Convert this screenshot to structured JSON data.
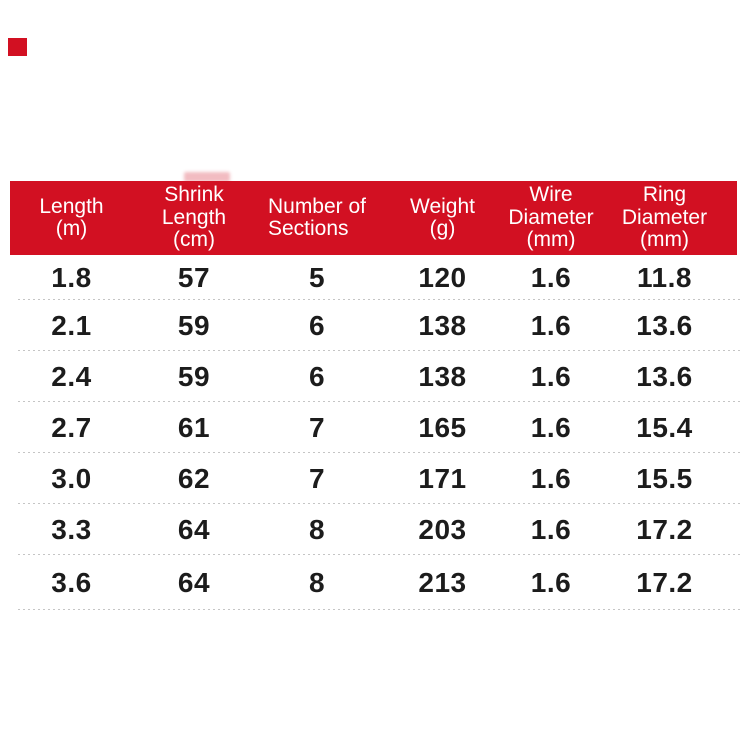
{
  "page": {
    "background": "#ffffff",
    "accent_red": "#d21022",
    "body_text_color": "#1c1c1c",
    "header_text_color": "#ffffff",
    "separator_color": "#c5c5c5"
  },
  "table": {
    "columns": [
      {
        "id": "length",
        "lines": [
          "Length",
          "(m)"
        ]
      },
      {
        "id": "shrink_length",
        "lines": [
          "Shrink",
          "Length",
          "(cm)"
        ]
      },
      {
        "id": "sections",
        "lines": [
          "Number of",
          "Sections"
        ]
      },
      {
        "id": "weight",
        "lines": [
          "Weight",
          "(g)"
        ]
      },
      {
        "id": "wire_diameter",
        "lines": [
          "Wire",
          "Diameter",
          "(mm)"
        ]
      },
      {
        "id": "ring_diameter",
        "lines": [
          "Ring",
          "Diameter",
          "(mm)"
        ]
      }
    ],
    "rows": [
      [
        "1.8",
        "57",
        "5",
        "120",
        "1.6",
        "11.8"
      ],
      [
        "2.1",
        "59",
        "6",
        "138",
        "1.6",
        "13.6"
      ],
      [
        "2.4",
        "59",
        "6",
        "138",
        "1.6",
        "13.6"
      ],
      [
        "2.7",
        "61",
        "7",
        "165",
        "1.6",
        "15.4"
      ],
      [
        "3.0",
        "62",
        "7",
        "171",
        "1.6",
        "15.5"
      ],
      [
        "3.3",
        "64",
        "8",
        "203",
        "1.6",
        "17.2"
      ],
      [
        "3.6",
        "64",
        "8",
        "213",
        "1.6",
        "17.2"
      ]
    ]
  },
  "chart_data": {
    "type": "table",
    "title": "",
    "columns": [
      "Length (m)",
      "Shrink Length (cm)",
      "Number of Sections",
      "Weight (g)",
      "Wire Diameter (mm)",
      "Ring Diameter (mm)"
    ],
    "rows": [
      [
        1.8,
        57,
        5,
        120,
        1.6,
        11.8
      ],
      [
        2.1,
        59,
        6,
        138,
        1.6,
        13.6
      ],
      [
        2.4,
        59,
        6,
        138,
        1.6,
        13.6
      ],
      [
        2.7,
        61,
        7,
        165,
        1.6,
        15.4
      ],
      [
        3.0,
        62,
        7,
        171,
        1.6,
        15.5
      ],
      [
        3.3,
        64,
        8,
        203,
        1.6,
        17.2
      ],
      [
        3.6,
        64,
        8,
        213,
        1.6,
        17.2
      ]
    ],
    "legend": false,
    "grid": "dashed horizontal row separators"
  }
}
